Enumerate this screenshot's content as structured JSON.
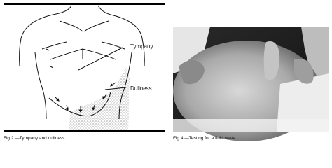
{
  "figures": [
    {
      "labels": [
        "Tympany",
        "Dullness"
      ],
      "caption": "Fig 2.—Tympany and dullness."
    },
    {
      "caption": "Fig 4.—Testing for a fluid wave."
    }
  ]
}
